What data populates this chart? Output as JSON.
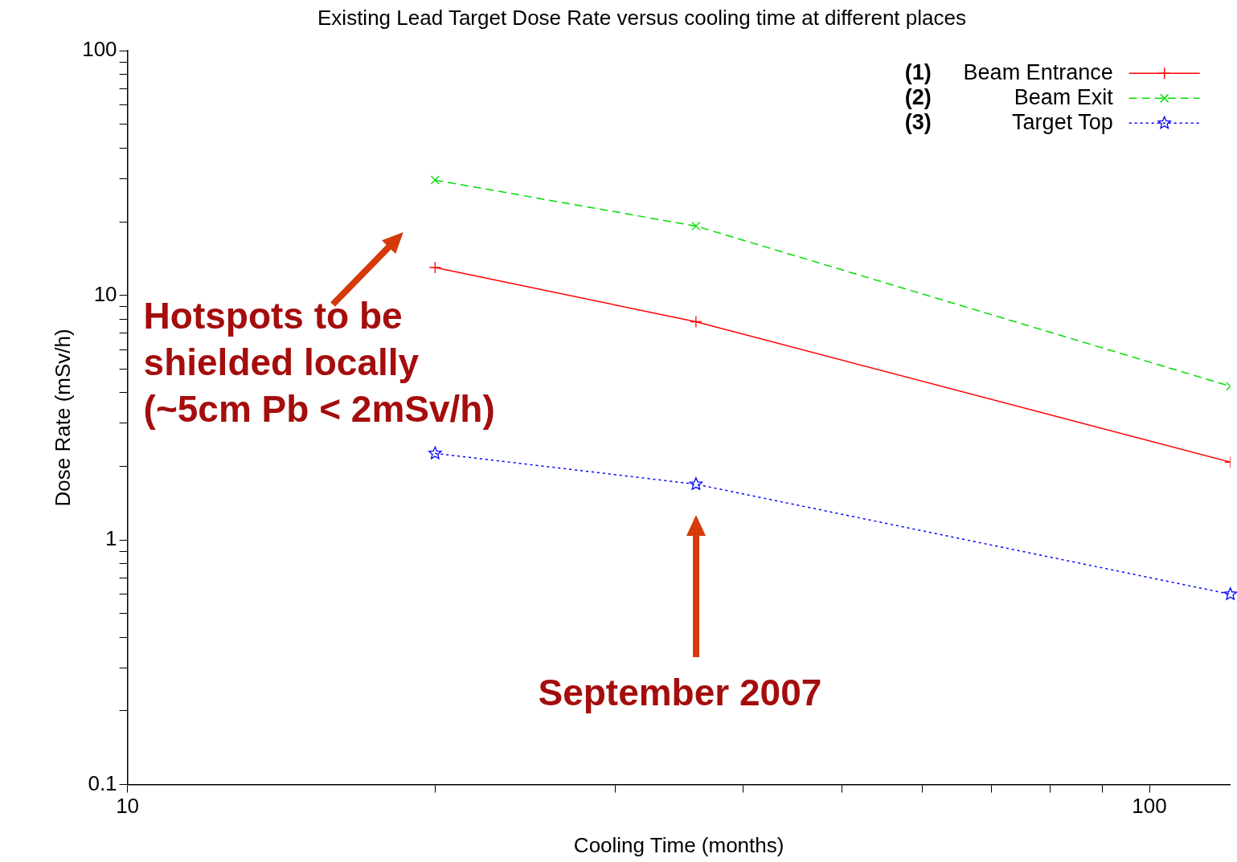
{
  "chart_data": {
    "type": "line",
    "title": "Existing Lead Target Dose Rate versus cooling time at different places",
    "xlabel": "Cooling Time (months)",
    "ylabel": "Dose Rate (mSv/h)",
    "x": [
      20,
      36,
      120
    ],
    "series": [
      {
        "name": "Beam Entrance",
        "color": "#ff0000",
        "values": [
          13.0,
          7.8,
          2.08
        ],
        "marker": "cross",
        "line_style": "solid"
      },
      {
        "name": "Beam Exit",
        "color": "#00dd00",
        "values": [
          29.6,
          19.2,
          4.25
        ],
        "marker": "x",
        "line_style": "dashed"
      },
      {
        "name": "Target Top",
        "color": "#0000ff",
        "values": [
          2.26,
          1.69,
          0.6
        ],
        "marker": "star",
        "line_style": "dotted"
      }
    ],
    "log": "xy",
    "grid": false,
    "legend": "top right",
    "xlim": [
      10,
      120
    ],
    "xticks": [
      10,
      {
        "value": 20,
        "label": null
      },
      {
        "value": 30,
        "label": null
      },
      {
        "value": 40,
        "label": null
      },
      {
        "value": 50,
        "label": null
      },
      {
        "value": 60,
        "label": null
      },
      {
        "value": 70,
        "label": null
      },
      {
        "value": 80,
        "label": null
      },
      {
        "value": 90,
        "label": null
      },
      100
    ],
    "ylim": [
      0.1,
      100
    ],
    "yticks": [
      0.1,
      {
        "value": 0.2,
        "label": null
      },
      {
        "value": 0.3,
        "label": null
      },
      {
        "value": 0.4,
        "label": null
      },
      {
        "value": 0.5,
        "label": null
      },
      {
        "value": 0.6,
        "label": null
      },
      {
        "value": 0.7,
        "label": null
      },
      {
        "value": 0.8,
        "label": null
      },
      {
        "value": 0.9,
        "label": null
      },
      1,
      {
        "value": 2,
        "label": null
      },
      {
        "value": 3,
        "label": null
      },
      {
        "value": 4,
        "label": null
      },
      {
        "value": 5,
        "label": null
      },
      {
        "value": 6,
        "label": null
      },
      {
        "value": 7,
        "label": null
      },
      {
        "value": 8,
        "label": null
      },
      {
        "value": 9,
        "label": null
      },
      10,
      {
        "value": 20,
        "label": null
      },
      {
        "value": 30,
        "label": null
      },
      {
        "value": 40,
        "label": null
      },
      {
        "value": 50,
        "label": null
      },
      {
        "value": 60,
        "label": null
      },
      {
        "value": 70,
        "label": null
      },
      {
        "value": 80,
        "label": null
      },
      {
        "value": 90,
        "label": null
      },
      100
    ],
    "annotations": [
      "(1)",
      "(2)",
      "(3)",
      "Hotspots to be shielded locally (~5cm Pb < 2mSv/h)",
      "September 2007"
    ]
  }
}
